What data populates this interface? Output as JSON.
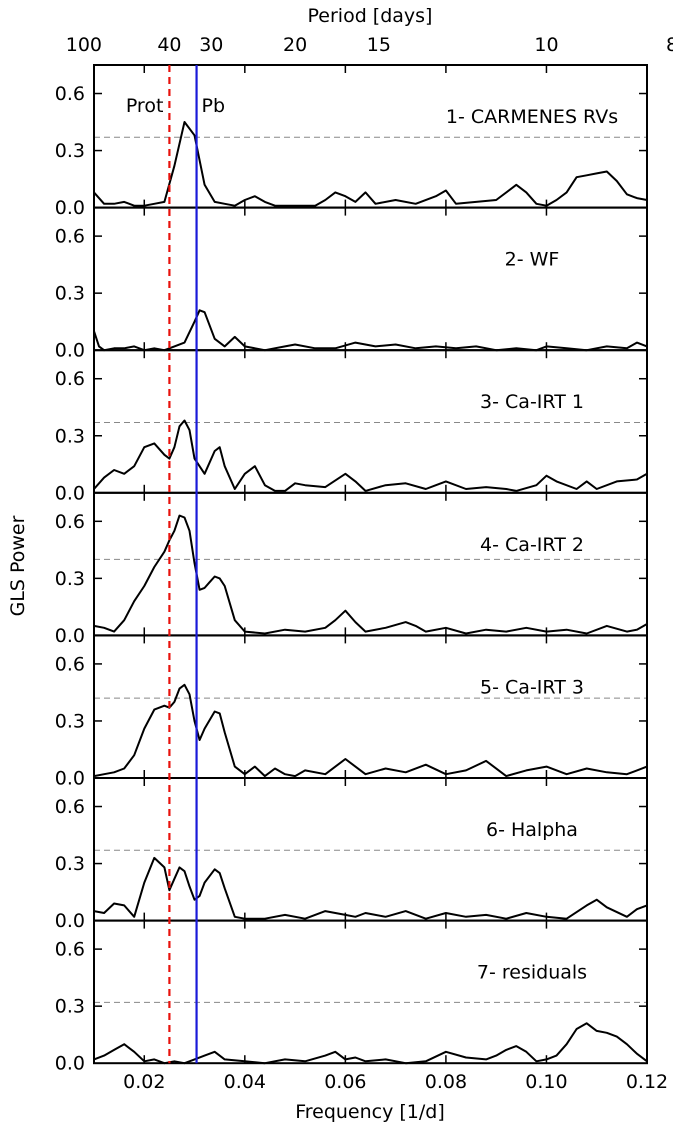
{
  "chart_data": {
    "type": "line",
    "xlabel": "Frequency [1/d]",
    "ylabel": "GLS Power",
    "top_axis_label": "Period [days]",
    "xlim": [
      0.01,
      0.12
    ],
    "ylim": [
      0,
      0.75
    ],
    "x_ticks": [
      "0.02",
      "0.04",
      "0.06",
      "0.08",
      "0.10",
      "0.12"
    ],
    "x_tick_values": [
      0.02,
      0.04,
      0.06,
      0.08,
      0.1,
      0.12
    ],
    "y_ticks": [
      "0.0",
      "0.3",
      "0.6"
    ],
    "y_tick_values": [
      0.0,
      0.3,
      0.6
    ],
    "period_ticks": [
      "100",
      "40",
      "30",
      "20",
      "15",
      "10",
      "8"
    ],
    "period_tick_values": [
      100,
      40,
      30,
      20,
      15,
      10,
      8
    ],
    "vlines": [
      {
        "label": "Prot",
        "x": 0.025,
        "color": "#e8120c",
        "style": "dashed"
      },
      {
        "label": "Pb",
        "x": 0.0304,
        "color": "#1a1ad8",
        "style": "solid"
      }
    ],
    "line_color": "#000000",
    "threshold_color": "#888888",
    "grid": false,
    "panels": [
      {
        "title": "1- CARMENES RVs",
        "threshold": 0.37,
        "x": [
          0.01,
          0.012,
          0.014,
          0.016,
          0.018,
          0.02,
          0.022,
          0.024,
          0.026,
          0.028,
          0.03,
          0.032,
          0.034,
          0.036,
          0.038,
          0.04,
          0.042,
          0.044,
          0.046,
          0.05,
          0.054,
          0.056,
          0.058,
          0.06,
          0.062,
          0.064,
          0.066,
          0.07,
          0.074,
          0.078,
          0.08,
          0.082,
          0.086,
          0.09,
          0.094,
          0.096,
          0.098,
          0.1,
          0.102,
          0.104,
          0.106,
          0.108,
          0.11,
          0.112,
          0.114,
          0.116,
          0.118,
          0.12
        ],
        "y": [
          0.08,
          0.02,
          0.02,
          0.03,
          0.01,
          0.01,
          0.02,
          0.03,
          0.22,
          0.45,
          0.38,
          0.12,
          0.03,
          0.02,
          0.01,
          0.04,
          0.06,
          0.03,
          0.01,
          0.01,
          0.01,
          0.04,
          0.08,
          0.06,
          0.03,
          0.08,
          0.02,
          0.04,
          0.02,
          0.06,
          0.09,
          0.02,
          0.03,
          0.04,
          0.12,
          0.08,
          0.02,
          0.01,
          0.04,
          0.08,
          0.16,
          0.17,
          0.18,
          0.19,
          0.14,
          0.07,
          0.05,
          0.04
        ]
      },
      {
        "title": "2- WF",
        "threshold": null,
        "x": [
          0.01,
          0.011,
          0.012,
          0.014,
          0.016,
          0.018,
          0.02,
          0.022,
          0.024,
          0.026,
          0.028,
          0.03,
          0.031,
          0.032,
          0.034,
          0.036,
          0.038,
          0.04,
          0.044,
          0.048,
          0.05,
          0.054,
          0.058,
          0.062,
          0.066,
          0.07,
          0.074,
          0.078,
          0.082,
          0.086,
          0.09,
          0.094,
          0.098,
          0.1,
          0.104,
          0.108,
          0.112,
          0.116,
          0.118,
          0.12
        ],
        "y": [
          0.1,
          0.02,
          0.0,
          0.01,
          0.01,
          0.02,
          0.0,
          0.01,
          0.0,
          0.02,
          0.04,
          0.15,
          0.21,
          0.2,
          0.06,
          0.02,
          0.07,
          0.02,
          0.0,
          0.02,
          0.03,
          0.01,
          0.01,
          0.04,
          0.02,
          0.03,
          0.01,
          0.02,
          0.01,
          0.02,
          0.0,
          0.01,
          0.0,
          0.02,
          0.01,
          0.0,
          0.02,
          0.01,
          0.04,
          0.02
        ]
      },
      {
        "title": "3- Ca-IRT 1",
        "threshold": 0.37,
        "x": [
          0.01,
          0.012,
          0.014,
          0.016,
          0.018,
          0.02,
          0.022,
          0.024,
          0.025,
          0.026,
          0.027,
          0.028,
          0.029,
          0.03,
          0.032,
          0.034,
          0.035,
          0.036,
          0.038,
          0.04,
          0.042,
          0.044,
          0.046,
          0.048,
          0.05,
          0.052,
          0.056,
          0.06,
          0.062,
          0.064,
          0.068,
          0.072,
          0.076,
          0.078,
          0.08,
          0.084,
          0.088,
          0.092,
          0.094,
          0.098,
          0.1,
          0.102,
          0.106,
          0.108,
          0.11,
          0.114,
          0.118,
          0.12
        ],
        "y": [
          0.02,
          0.08,
          0.12,
          0.1,
          0.14,
          0.24,
          0.26,
          0.2,
          0.18,
          0.24,
          0.35,
          0.38,
          0.33,
          0.18,
          0.1,
          0.22,
          0.24,
          0.14,
          0.02,
          0.1,
          0.14,
          0.04,
          0.01,
          0.01,
          0.05,
          0.04,
          0.03,
          0.1,
          0.06,
          0.01,
          0.04,
          0.05,
          0.02,
          0.04,
          0.06,
          0.02,
          0.03,
          0.02,
          0.01,
          0.04,
          0.09,
          0.06,
          0.02,
          0.06,
          0.02,
          0.06,
          0.07,
          0.1
        ]
      },
      {
        "title": "4- Ca-IRT 2",
        "threshold": 0.4,
        "x": [
          0.01,
          0.012,
          0.014,
          0.016,
          0.018,
          0.02,
          0.022,
          0.024,
          0.025,
          0.026,
          0.027,
          0.028,
          0.029,
          0.03,
          0.031,
          0.032,
          0.033,
          0.034,
          0.035,
          0.036,
          0.038,
          0.04,
          0.044,
          0.048,
          0.052,
          0.056,
          0.058,
          0.06,
          0.062,
          0.064,
          0.068,
          0.072,
          0.074,
          0.076,
          0.08,
          0.084,
          0.088,
          0.092,
          0.096,
          0.1,
          0.104,
          0.108,
          0.112,
          0.116,
          0.118,
          0.12
        ],
        "y": [
          0.05,
          0.04,
          0.02,
          0.08,
          0.18,
          0.26,
          0.36,
          0.44,
          0.5,
          0.55,
          0.63,
          0.62,
          0.55,
          0.38,
          0.24,
          0.25,
          0.28,
          0.31,
          0.3,
          0.26,
          0.08,
          0.02,
          0.01,
          0.03,
          0.02,
          0.04,
          0.08,
          0.13,
          0.07,
          0.02,
          0.04,
          0.07,
          0.05,
          0.02,
          0.04,
          0.01,
          0.03,
          0.02,
          0.04,
          0.02,
          0.03,
          0.01,
          0.05,
          0.02,
          0.03,
          0.06
        ]
      },
      {
        "title": "5- Ca-IRT 3",
        "threshold": 0.42,
        "x": [
          0.01,
          0.012,
          0.014,
          0.016,
          0.018,
          0.02,
          0.022,
          0.024,
          0.025,
          0.026,
          0.027,
          0.028,
          0.029,
          0.03,
          0.031,
          0.032,
          0.034,
          0.035,
          0.036,
          0.038,
          0.04,
          0.042,
          0.044,
          0.046,
          0.048,
          0.05,
          0.052,
          0.056,
          0.06,
          0.062,
          0.064,
          0.068,
          0.072,
          0.076,
          0.08,
          0.084,
          0.088,
          0.092,
          0.096,
          0.1,
          0.104,
          0.108,
          0.112,
          0.116,
          0.12
        ],
        "y": [
          0.01,
          0.02,
          0.03,
          0.05,
          0.12,
          0.26,
          0.36,
          0.38,
          0.37,
          0.4,
          0.47,
          0.49,
          0.44,
          0.3,
          0.2,
          0.26,
          0.35,
          0.34,
          0.24,
          0.06,
          0.02,
          0.06,
          0.01,
          0.05,
          0.02,
          0.01,
          0.04,
          0.02,
          0.1,
          0.06,
          0.02,
          0.05,
          0.03,
          0.07,
          0.02,
          0.04,
          0.09,
          0.01,
          0.04,
          0.06,
          0.02,
          0.05,
          0.03,
          0.02,
          0.06
        ]
      },
      {
        "title": "6- Halpha",
        "threshold": 0.37,
        "x": [
          0.01,
          0.012,
          0.014,
          0.016,
          0.018,
          0.02,
          0.022,
          0.024,
          0.025,
          0.026,
          0.027,
          0.028,
          0.029,
          0.03,
          0.031,
          0.032,
          0.034,
          0.035,
          0.036,
          0.038,
          0.04,
          0.044,
          0.048,
          0.052,
          0.056,
          0.06,
          0.062,
          0.064,
          0.068,
          0.072,
          0.076,
          0.08,
          0.084,
          0.088,
          0.092,
          0.096,
          0.1,
          0.104,
          0.108,
          0.11,
          0.112,
          0.116,
          0.118,
          0.12
        ],
        "y": [
          0.05,
          0.04,
          0.09,
          0.08,
          0.02,
          0.2,
          0.33,
          0.28,
          0.16,
          0.22,
          0.28,
          0.26,
          0.18,
          0.11,
          0.13,
          0.2,
          0.27,
          0.25,
          0.17,
          0.02,
          0.01,
          0.01,
          0.03,
          0.01,
          0.05,
          0.03,
          0.02,
          0.04,
          0.02,
          0.05,
          0.01,
          0.04,
          0.02,
          0.03,
          0.01,
          0.04,
          0.02,
          0.01,
          0.08,
          0.11,
          0.07,
          0.02,
          0.06,
          0.08
        ]
      },
      {
        "title": "7- residuals",
        "threshold": 0.32,
        "x": [
          0.01,
          0.012,
          0.014,
          0.016,
          0.018,
          0.02,
          0.022,
          0.024,
          0.026,
          0.028,
          0.03,
          0.032,
          0.034,
          0.036,
          0.04,
          0.044,
          0.048,
          0.052,
          0.056,
          0.058,
          0.06,
          0.062,
          0.064,
          0.068,
          0.072,
          0.076,
          0.08,
          0.084,
          0.088,
          0.09,
          0.092,
          0.094,
          0.096,
          0.098,
          0.1,
          0.102,
          0.104,
          0.106,
          0.108,
          0.11,
          0.112,
          0.114,
          0.116,
          0.118,
          0.12
        ],
        "y": [
          0.02,
          0.04,
          0.07,
          0.1,
          0.06,
          0.01,
          0.02,
          0.0,
          0.01,
          0.0,
          0.02,
          0.04,
          0.06,
          0.02,
          0.01,
          0.0,
          0.02,
          0.01,
          0.04,
          0.06,
          0.02,
          0.03,
          0.01,
          0.02,
          0.0,
          0.01,
          0.06,
          0.03,
          0.02,
          0.04,
          0.07,
          0.09,
          0.06,
          0.01,
          0.02,
          0.04,
          0.1,
          0.18,
          0.21,
          0.17,
          0.16,
          0.14,
          0.1,
          0.05,
          0.01
        ]
      }
    ]
  }
}
